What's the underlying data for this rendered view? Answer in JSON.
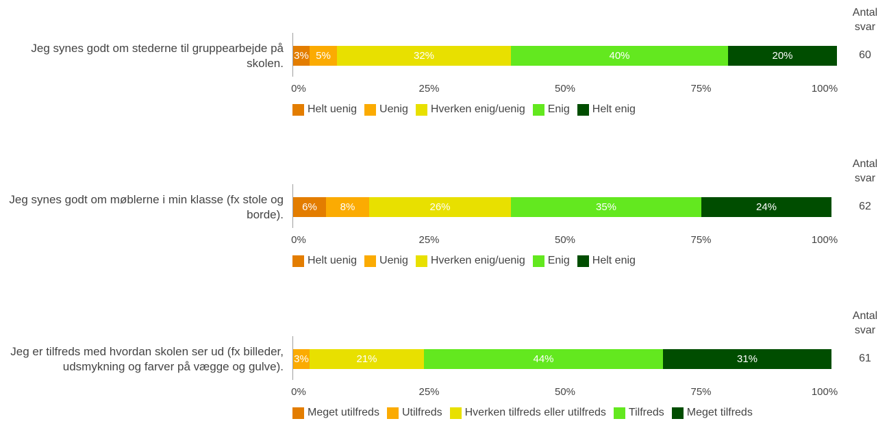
{
  "count_header_line1": "Antal",
  "count_header_line2": "svar",
  "chart_data": [
    {
      "type": "bar",
      "orientation": "horizontal",
      "stacked": true,
      "normalized": true,
      "question": "Jeg synes godt om stederne til gruppearbejde på skolen.",
      "count": "60",
      "xlim": [
        0,
        100
      ],
      "ticks": [
        "0%",
        "25%",
        "50%",
        "75%",
        "100%"
      ],
      "legend_position": "bottom",
      "series": [
        {
          "name": "Helt uenig",
          "value": 3,
          "label": "3%",
          "color": "#e37d00"
        },
        {
          "name": "Uenig",
          "value": 5,
          "label": "5%",
          "color": "#fbab02"
        },
        {
          "name": "Hverken enig/uenig",
          "value": 32,
          "label": "32%",
          "color": "#e8e000"
        },
        {
          "name": "Enig",
          "value": 40,
          "label": "40%",
          "color": "#63e81f"
        },
        {
          "name": "Helt enig",
          "value": 20,
          "label": "20%",
          "color": "#004d00"
        }
      ]
    },
    {
      "type": "bar",
      "orientation": "horizontal",
      "stacked": true,
      "normalized": true,
      "question": "Jeg synes godt om møblerne i min klasse (fx stole og borde).",
      "count": "62",
      "xlim": [
        0,
        100
      ],
      "ticks": [
        "0%",
        "25%",
        "50%",
        "75%",
        "100%"
      ],
      "legend_position": "bottom",
      "series": [
        {
          "name": "Helt uenig",
          "value": 6,
          "label": "6%",
          "color": "#e37d00"
        },
        {
          "name": "Uenig",
          "value": 8,
          "label": "8%",
          "color": "#fbab02"
        },
        {
          "name": "Hverken enig/uenig",
          "value": 26,
          "label": "26%",
          "color": "#e8e000"
        },
        {
          "name": "Enig",
          "value": 35,
          "label": "35%",
          "color": "#63e81f"
        },
        {
          "name": "Helt enig",
          "value": 24,
          "label": "24%",
          "color": "#004d00"
        }
      ]
    },
    {
      "type": "bar",
      "orientation": "horizontal",
      "stacked": true,
      "normalized": true,
      "question": "Jeg er tilfreds med hvordan skolen ser ud (fx billeder, udsmykning og farver på vægge og gulve).",
      "count": "61",
      "xlim": [
        0,
        100
      ],
      "ticks": [
        "0%",
        "25%",
        "50%",
        "75%",
        "100%"
      ],
      "legend_position": "bottom",
      "series": [
        {
          "name": "Meget utilfreds",
          "value": 0,
          "label": "",
          "color": "#e37d00"
        },
        {
          "name": "Utilfreds",
          "value": 3,
          "label": "3%",
          "color": "#fbab02"
        },
        {
          "name": "Hverken tilfreds eller utilfreds",
          "value": 21,
          "label": "21%",
          "color": "#e8e000"
        },
        {
          "name": "Tilfreds",
          "value": 44,
          "label": "44%",
          "color": "#63e81f"
        },
        {
          "name": "Meget tilfreds",
          "value": 31,
          "label": "31%",
          "color": "#004d00"
        }
      ]
    }
  ]
}
